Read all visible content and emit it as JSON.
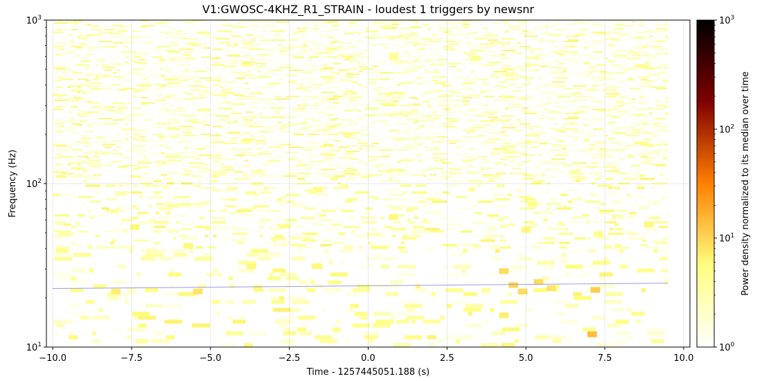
{
  "chart_data": {
    "type": "heatmap",
    "title": "V1:GWOSC-4KHZ_R1_STRAIN - loudest 1 triggers by newsnr",
    "xlabel": "Time - 1257445051.188 (s)",
    "ylabel": "Frequency (Hz)",
    "xlim": [
      -10.2,
      10.2
    ],
    "ylim": [
      10,
      1000
    ],
    "y_scale": "log",
    "grid": true,
    "x_ticks": [
      -10.0,
      -7.5,
      -5.0,
      -2.5,
      0.0,
      2.5,
      5.0,
      7.5,
      10.0
    ],
    "x_tick_labels": [
      "−10.0",
      "−7.5",
      "−5.0",
      "−2.5",
      "0.0",
      "2.5",
      "5.0",
      "7.5",
      "10.0"
    ],
    "y_ticks": [
      10,
      100,
      1000
    ],
    "y_tick_labels": [
      {
        "base": "10",
        "exp": "1"
      },
      {
        "base": "10",
        "exp": "2"
      },
      {
        "base": "10",
        "exp": "3"
      }
    ],
    "data_extent_x": [
      -10.0,
      9.5
    ],
    "colormap": "afmhot_r",
    "colorbar": {
      "label": "Power density normalized to its median over time",
      "scale": "log",
      "range": [
        1,
        1000
      ],
      "ticks": [
        1,
        10,
        100,
        1000
      ],
      "tick_labels": [
        {
          "base": "10",
          "exp": "0"
        },
        {
          "base": "10",
          "exp": "1"
        },
        {
          "base": "10",
          "exp": "2"
        },
        {
          "base": "10",
          "exp": "3"
        }
      ]
    },
    "track": {
      "color": "#9a9ae0",
      "points": [
        [
          -10.0,
          22.8
        ],
        [
          9.5,
          24.6
        ]
      ]
    },
    "hotspots": [
      {
        "t": 7.1,
        "f": 11.5,
        "v": 14
      },
      {
        "t": 7.2,
        "f": 21.5,
        "v": 11
      },
      {
        "t": 4.3,
        "f": 28.0,
        "v": 9
      },
      {
        "t": 4.6,
        "f": 23.0,
        "v": 10
      },
      {
        "t": 4.9,
        "f": 21.0,
        "v": 9
      },
      {
        "t": 5.4,
        "f": 24.0,
        "v": 9
      },
      {
        "t": 5.8,
        "f": 22.0,
        "v": 8
      },
      {
        "t": 4.3,
        "f": 15.0,
        "v": 7
      },
      {
        "t": -5.4,
        "f": 21.0,
        "v": 8
      },
      {
        "t": -8.0,
        "f": 21.0,
        "v": 7
      },
      {
        "t": -3.5,
        "f": 22.0,
        "v": 6
      },
      {
        "t": -7.4,
        "f": 52.0,
        "v": 6
      },
      {
        "t": -5.7,
        "f": 40.0,
        "v": 6
      },
      {
        "t": -3.7,
        "f": 30.0,
        "v": 6
      },
      {
        "t": -1.6,
        "f": 30.0,
        "v": 6
      },
      {
        "t": 0.8,
        "f": 60.0,
        "v": 6
      },
      {
        "t": 5.0,
        "f": 50.0,
        "v": 6
      },
      {
        "t": 8.9,
        "f": 54.0,
        "v": 6
      },
      {
        "t": 7.3,
        "f": 47.0,
        "v": 5
      },
      {
        "t": -1.6,
        "f": 88.0,
        "v": 5
      },
      {
        "t": 5.2,
        "f": 72.0,
        "v": 5
      },
      {
        "t": 0.8,
        "f": 570.0,
        "v": 4
      },
      {
        "t": 3.4,
        "f": 560.0,
        "v": 4
      }
    ]
  }
}
